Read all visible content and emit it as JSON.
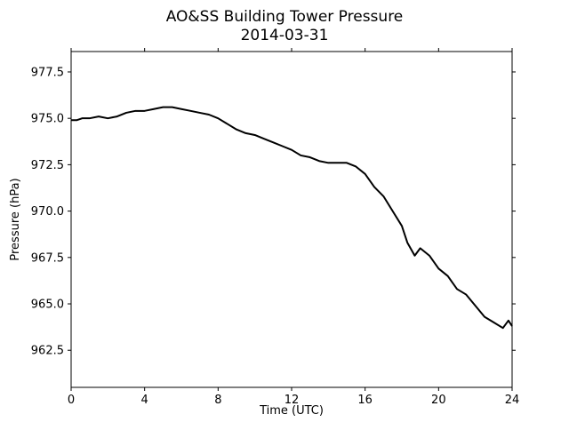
{
  "chart_data": {
    "type": "line",
    "title": "AO&SS Building Tower Pressure",
    "subtitle": "2014-03-31",
    "xlabel": "Time (UTC)",
    "ylabel": "Pressure (hPa)",
    "xlim": [
      0,
      24
    ],
    "ylim": [
      960.5,
      978.6
    ],
    "x_ticks": [
      0,
      4,
      8,
      12,
      16,
      20,
      24
    ],
    "x_tick_labels": [
      "0",
      "4",
      "8",
      "12",
      "16",
      "20",
      "24"
    ],
    "y_ticks": [
      962.5,
      965.0,
      967.5,
      970.0,
      972.5,
      975.0,
      977.5
    ],
    "y_tick_labels": [
      "962.5",
      "965.0",
      "967.5",
      "970.0",
      "972.5",
      "975.0",
      "977.5"
    ],
    "grid": false,
    "line_color": "#000000",
    "series": [
      {
        "x": [
          0,
          0.3,
          0.6,
          1.0,
          1.5,
          2.0,
          2.5,
          3.0,
          3.5,
          4.0,
          4.5,
          5.0,
          5.5,
          6.0,
          6.5,
          7.0,
          7.5,
          8.0,
          8.5,
          9.0,
          9.5,
          10.0,
          10.5,
          11.0,
          11.5,
          12.0,
          12.5,
          13.0,
          13.5,
          14.0,
          14.5,
          15.0,
          15.5,
          16.0,
          16.5,
          17.0,
          17.5,
          18.0,
          18.3,
          18.7,
          19.0,
          19.5,
          20.0,
          20.5,
          21.0,
          21.5,
          22.0,
          22.5,
          23.0,
          23.5,
          23.8,
          24.0
        ],
        "y": [
          974.9,
          974.9,
          975.0,
          975.0,
          975.1,
          975.0,
          975.1,
          975.3,
          975.4,
          975.4,
          975.5,
          975.6,
          975.6,
          975.5,
          975.4,
          975.3,
          975.2,
          975.0,
          974.7,
          974.4,
          974.2,
          974.1,
          973.9,
          973.7,
          973.5,
          973.3,
          973.0,
          972.9,
          972.7,
          972.6,
          972.6,
          972.6,
          972.4,
          972.0,
          971.3,
          970.8,
          970.0,
          969.2,
          968.3,
          967.6,
          968.0,
          967.6,
          966.9,
          966.5,
          965.8,
          965.5,
          964.9,
          964.3,
          964.0,
          963.7,
          964.1,
          963.8
        ]
      }
    ]
  }
}
